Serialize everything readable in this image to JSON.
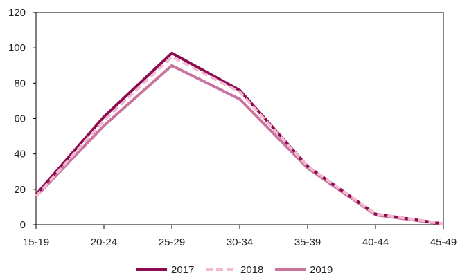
{
  "chart_data": {
    "type": "line",
    "title": "",
    "xlabel": "",
    "ylabel": "",
    "categories": [
      "15-19",
      "20-24",
      "25-29",
      "30-34",
      "35-39",
      "40-44",
      "45-49"
    ],
    "ylim": [
      0,
      120
    ],
    "yticks": [
      0,
      20,
      40,
      60,
      80,
      100,
      120
    ],
    "grid": false,
    "legend_position": "bottom",
    "series": [
      {
        "name": "2017",
        "values": [
          17,
          61,
          97,
          76,
          33,
          6,
          0.5
        ],
        "color": "#8b0a50",
        "dash": "solid"
      },
      {
        "name": "2018",
        "values": [
          16,
          59,
          95,
          75,
          33,
          6,
          0.5
        ],
        "color": "#f2b8cf",
        "dash": "dashed"
      },
      {
        "name": "2019",
        "values": [
          16,
          56,
          90,
          71,
          32,
          5.5,
          0.3
        ],
        "color": "#c9739e",
        "dash": "solid"
      }
    ]
  }
}
